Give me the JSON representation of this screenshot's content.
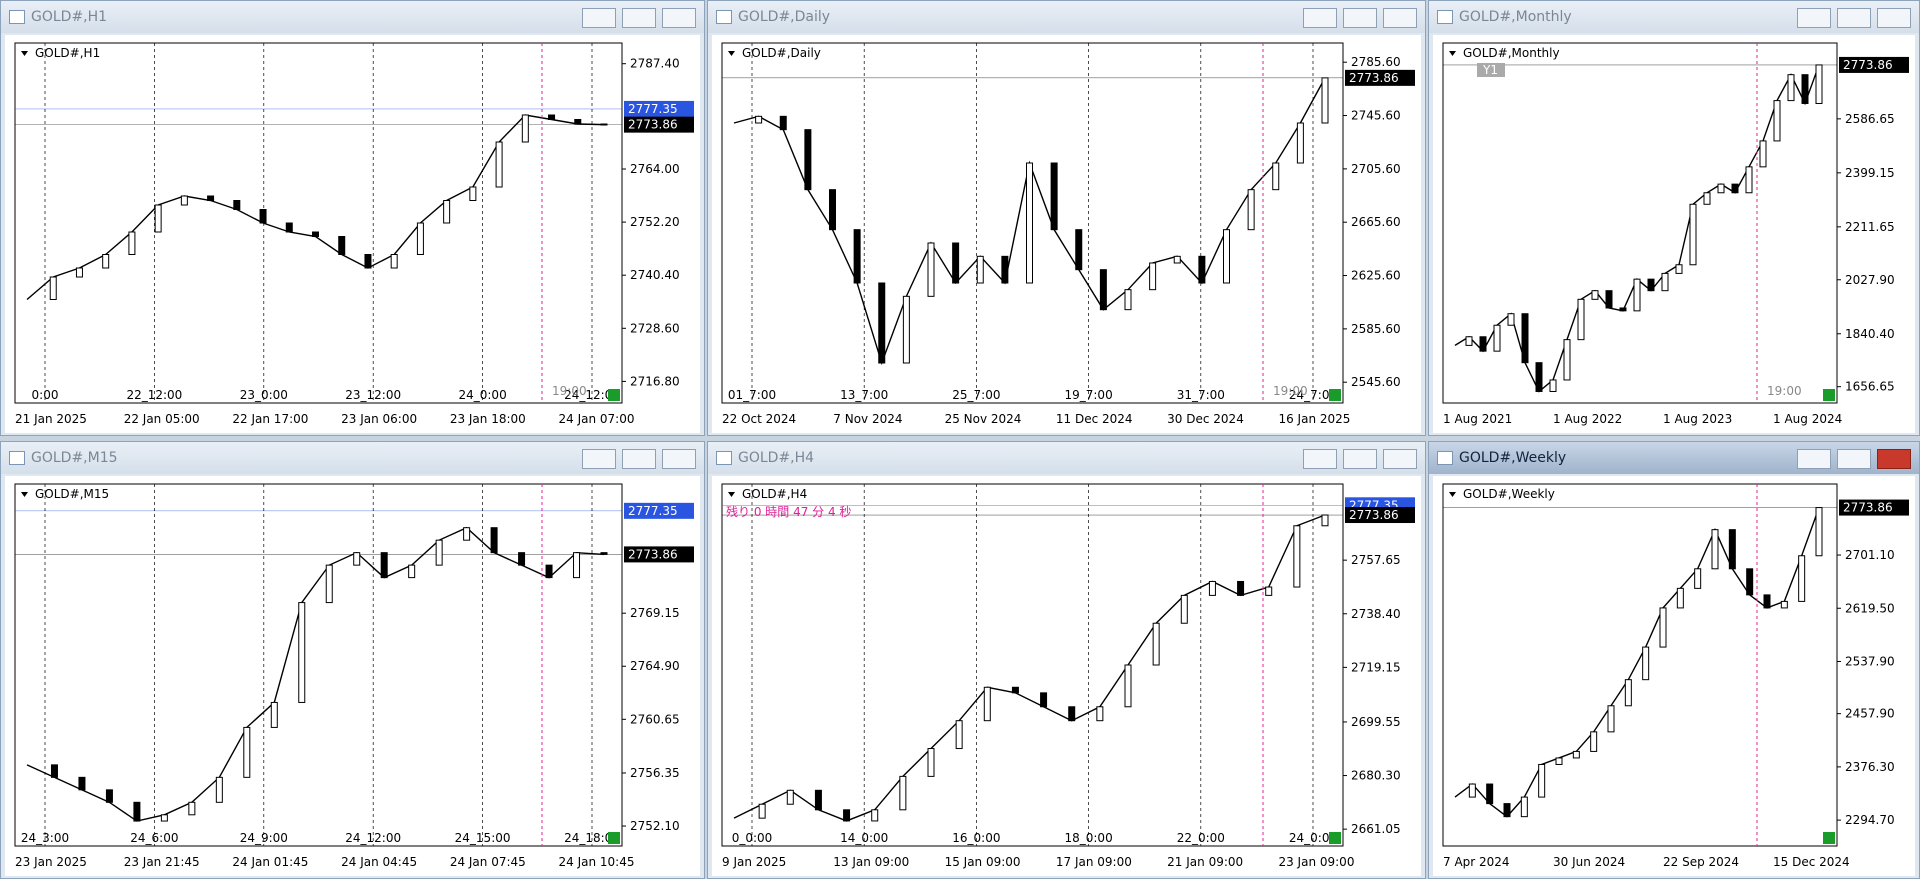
{
  "windows": [
    {
      "title": "GOLD#,H1",
      "chart_label": "GOLD#,H1",
      "ylim": [
        2712,
        2792
      ],
      "yticks": [
        {
          "value": 2787.4,
          "label": "2787.40"
        },
        {
          "value": 2764,
          "label": "2764.00"
        },
        {
          "value": 2752.2,
          "label": "2752.20"
        },
        {
          "value": 2740.4,
          "label": "2740.40"
        },
        {
          "value": 2728.6,
          "label": "2728.60"
        },
        {
          "value": 2716.8,
          "label": "2716.80"
        }
      ],
      "tags": [
        {
          "value": 2777.35,
          "color": "#2a55e0"
        },
        {
          "value": 2773.86,
          "color": "#000000"
        }
      ],
      "time_labels": [
        "0:00",
        "22_12:00",
        "23_0:00",
        "23_12:00",
        "24_0:00",
        "24_12:00"
      ],
      "dates": [
        "21 Jan 2025",
        "22 Jan 05:00",
        "22 Jan 17:00",
        "23 Jan 06:00",
        "23 Jan 18:00",
        "24 Jan 07:00"
      ],
      "clock": "19:00",
      "closes": [
        2735,
        2740,
        2742,
        2745,
        2750,
        2756,
        2758,
        2757,
        2755,
        2752,
        2750,
        2749,
        2745,
        2742,
        2745,
        2752,
        2757,
        2760,
        2770,
        2776,
        2775,
        2774,
        2773.86
      ]
    },
    {
      "title": "GOLD#,Daily",
      "chart_label": "GOLD#,Daily",
      "ylim": [
        2530,
        2800
      ],
      "yticks": [
        {
          "value": 2785.6,
          "label": "2785.60"
        },
        {
          "value": 2745.6,
          "label": "2745.60"
        },
        {
          "value": 2705.6,
          "label": "2705.60"
        },
        {
          "value": 2665.6,
          "label": "2665.60"
        },
        {
          "value": 2625.6,
          "label": "2625.60"
        },
        {
          "value": 2585.6,
          "label": "2585.60"
        },
        {
          "value": 2545.6,
          "label": "2545.60"
        }
      ],
      "tags": [
        {
          "value": 2773.86,
          "color": "#000000"
        }
      ],
      "time_labels": [
        "01_7:00",
        "13_7:00",
        "25_7:00",
        "19_7:00",
        "31_7:00",
        "24_7:00"
      ],
      "dates": [
        "22 Oct 2024",
        "7 Nov 2024",
        "25 Nov 2024",
        "11 Dec 2024",
        "30 Dec 2024",
        "16 Jan 2025"
      ],
      "clock": "19:00",
      "closes": [
        2740,
        2745,
        2735,
        2690,
        2660,
        2620,
        2560,
        2610,
        2650,
        2620,
        2640,
        2620,
        2710,
        2660,
        2630,
        2600,
        2615,
        2635,
        2640,
        2620,
        2660,
        2690,
        2710,
        2740,
        2773.86
      ]
    },
    {
      "title": "GOLD#,Monthly",
      "chart_label": "GOLD#,Monthly",
      "ylim": [
        1600,
        2850
      ],
      "button": "Y1",
      "yticks": [
        2586.65,
        2399.15,
        2211.65,
        {
          "value": 2027.9,
          "label": "2027.90"
        },
        {
          "value": 1840.4,
          "label": "1840.40"
        },
        1656.65
      ],
      "tags": [
        {
          "value": 2773.86,
          "color": "#000000"
        }
      ],
      "time_labels": [],
      "dates": [
        "1 Aug 2021",
        "1 Aug 2022",
        "1 Aug 2023",
        "1 Aug 2024"
      ],
      "clock": "19:00",
      "closes": [
        1800,
        1830,
        1780,
        1870,
        1910,
        1740,
        1640,
        1680,
        1820,
        1960,
        1990,
        1930,
        1920,
        2030,
        1990,
        2050,
        2080,
        2290,
        2330,
        2360,
        2330,
        2420,
        2510,
        2650,
        2740,
        2640,
        2773.86
      ]
    },
    {
      "title": "GOLD#,M15",
      "chart_label": "GOLD#,M15",
      "ylim": [
        2750.5,
        2779.5
      ],
      "yticks": [
        2769.15,
        {
          "value": 2764.9,
          "label": "2764.90"
        },
        2760.65,
        2756.35,
        {
          "value": 2752.1,
          "label": "2752.10"
        }
      ],
      "tags": [
        {
          "value": 2777.35,
          "color": "#2a55e0"
        },
        {
          "value": 2773.86,
          "color": "#000000"
        }
      ],
      "time_labels": [
        "24_3:00",
        "24_6:00",
        "24_9:00",
        "24_12:00",
        "24_15:00",
        "24_18:00"
      ],
      "dates": [
        "23 Jan 2025",
        "23 Jan 21:45",
        "24 Jan 01:45",
        "24 Jan 04:45",
        "24 Jan 07:45",
        "24 Jan 10:45"
      ],
      "closes": [
        2757,
        2756,
        2755,
        2754,
        2752.5,
        2753,
        2754,
        2756,
        2760,
        2762,
        2770,
        2773,
        2774,
        2772,
        2773,
        2775,
        2776,
        2774,
        2773,
        2772,
        2774,
        2773.86
      ]
    },
    {
      "title": "GOLD#,H4",
      "chart_label": "GOLD#,H4",
      "ylim": [
        2655,
        2785
      ],
      "countdown": "残り 0 時間 47 分 4 秒",
      "yticks": [
        2757.65,
        {
          "value": 2738.4,
          "label": "2738.40"
        },
        2719.15,
        2699.55,
        {
          "value": 2680.3,
          "label": "2680.30"
        },
        2661.05
      ],
      "tags": [
        {
          "value": 2777.35,
          "color": "#2a55e0"
        },
        {
          "value": 2773.86,
          "color": "#000000"
        }
      ],
      "time_labels": [
        "0_0:00",
        "14_0:00",
        "16_0:00",
        "18_0:00",
        "22_0:00",
        "24_0:00"
      ],
      "dates": [
        "9 Jan 2025",
        "13 Jan 09:00",
        "15 Jan 09:00",
        "17 Jan 09:00",
        "21 Jan 09:00",
        "23 Jan 09:00"
      ],
      "closes": [
        2665,
        2670,
        2675,
        2668,
        2664,
        2668,
        2680,
        2690,
        2700,
        2712,
        2710,
        2705,
        2700,
        2705,
        2720,
        2735,
        2745,
        2750,
        2745,
        2748,
        2770,
        2773.86
      ]
    },
    {
      "title": "GOLD#,Weekly",
      "chart_label": "GOLD#,Weekly",
      "ylim": [
        2255,
        2810
      ],
      "active": true,
      "yticks": [
        {
          "value": 2701.1,
          "label": "2701.10"
        },
        {
          "value": 2619.5,
          "label": "2619.50"
        },
        {
          "value": 2537.9,
          "label": "2537.90"
        },
        {
          "value": 2457.9,
          "label": "2457.90"
        },
        {
          "value": 2376.3,
          "label": "2376.30"
        },
        {
          "value": 2294.7,
          "label": "2294.70"
        }
      ],
      "tags": [
        {
          "value": 2773.86,
          "color": "#000000"
        }
      ],
      "time_labels": [],
      "dates": [
        "7 Apr 2024",
        "30 Jun 2024",
        "22 Sep 2024",
        "15 Dec 2024"
      ],
      "closes": [
        2330,
        2350,
        2320,
        2300,
        2330,
        2380,
        2390,
        2400,
        2430,
        2470,
        2510,
        2560,
        2620,
        2650,
        2680,
        2740,
        2680,
        2640,
        2620,
        2630,
        2700,
        2773.86
      ]
    }
  ]
}
